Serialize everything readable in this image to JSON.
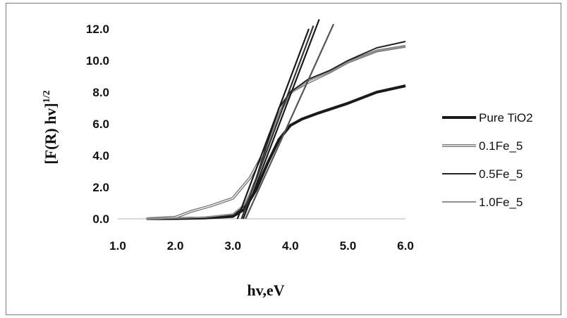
{
  "chart_data": {
    "type": "line",
    "xlabel": "hv,eV",
    "ylabel": "[F(R) hv]",
    "ylabel_sup": "1/2",
    "xlim": [
      1.0,
      6.0
    ],
    "ylim": [
      0.0,
      12.0
    ],
    "x_ticks": [
      "1.0",
      "2.0",
      "3.0",
      "4.0",
      "5.0",
      "6.0"
    ],
    "y_ticks": [
      "0.0",
      "2.0",
      "4.0",
      "6.0",
      "8.0",
      "10.0",
      "12.0"
    ],
    "grid": false,
    "legend_position": "right",
    "series": [
      {
        "name": "Pure TiO2",
        "color": "#1a1a1a",
        "style": "thick",
        "points": [
          [
            1.5,
            0
          ],
          [
            2.0,
            0.02
          ],
          [
            2.5,
            0.05
          ],
          [
            3.0,
            0.15
          ],
          [
            3.2,
            0.6
          ],
          [
            3.4,
            1.8
          ],
          [
            3.6,
            3.5
          ],
          [
            3.8,
            5.0
          ],
          [
            4.0,
            5.9
          ],
          [
            4.2,
            6.3
          ],
          [
            4.5,
            6.7
          ],
          [
            5.0,
            7.3
          ],
          [
            5.5,
            8.0
          ],
          [
            6.0,
            8.4
          ]
        ]
      },
      {
        "name": "0.1Fe_5",
        "color": "#7a7a7a",
        "style": "double",
        "points": [
          [
            1.5,
            0
          ],
          [
            2.0,
            0.1
          ],
          [
            2.3,
            0.5
          ],
          [
            2.6,
            0.8
          ],
          [
            3.0,
            1.3
          ],
          [
            3.3,
            2.6
          ],
          [
            3.6,
            4.6
          ],
          [
            3.8,
            6.6
          ],
          [
            4.0,
            8.0
          ],
          [
            4.3,
            8.6
          ],
          [
            4.7,
            9.3
          ],
          [
            5.0,
            9.9
          ],
          [
            5.5,
            10.6
          ],
          [
            6.0,
            10.9
          ]
        ]
      },
      {
        "name": "0.5Fe_5",
        "color": "#222222",
        "style": "thin",
        "points": [
          [
            1.5,
            0
          ],
          [
            2.0,
            0.05
          ],
          [
            2.5,
            0.1
          ],
          [
            3.0,
            0.25
          ],
          [
            3.2,
            0.8
          ],
          [
            3.4,
            2.5
          ],
          [
            3.6,
            4.8
          ],
          [
            3.8,
            7.0
          ],
          [
            4.0,
            8.0
          ],
          [
            4.3,
            8.8
          ],
          [
            4.7,
            9.4
          ],
          [
            5.0,
            10.0
          ],
          [
            5.5,
            10.8
          ],
          [
            6.0,
            11.2
          ]
        ]
      },
      {
        "name": "1.0Fe_5",
        "color": "#909090",
        "style": "thin",
        "points": [
          [
            1.5,
            0
          ],
          [
            2.0,
            0.05
          ],
          [
            2.5,
            0.1
          ],
          [
            3.0,
            0.3
          ],
          [
            3.2,
            0.9
          ],
          [
            3.4,
            2.4
          ],
          [
            3.6,
            4.5
          ],
          [
            3.8,
            6.6
          ],
          [
            4.0,
            7.9
          ],
          [
            4.3,
            8.7
          ],
          [
            4.7,
            9.3
          ],
          [
            5.0,
            9.9
          ],
          [
            5.5,
            10.6
          ],
          [
            6.0,
            10.9
          ]
        ]
      }
    ],
    "tangent_lines": [
      {
        "color": "#1a1a1a",
        "from": [
          3.18,
          0.0
        ],
        "to": [
          4.5,
          12.6
        ]
      },
      {
        "color": "#1a1a1a",
        "from": [
          3.08,
          0.0
        ],
        "to": [
          4.32,
          12.0
        ]
      },
      {
        "color": "#333333",
        "from": [
          3.15,
          0.0
        ],
        "to": [
          4.4,
          12.2
        ]
      },
      {
        "color": "#555555",
        "from": [
          3.22,
          0.0
        ],
        "to": [
          4.75,
          12.3
        ]
      }
    ]
  }
}
